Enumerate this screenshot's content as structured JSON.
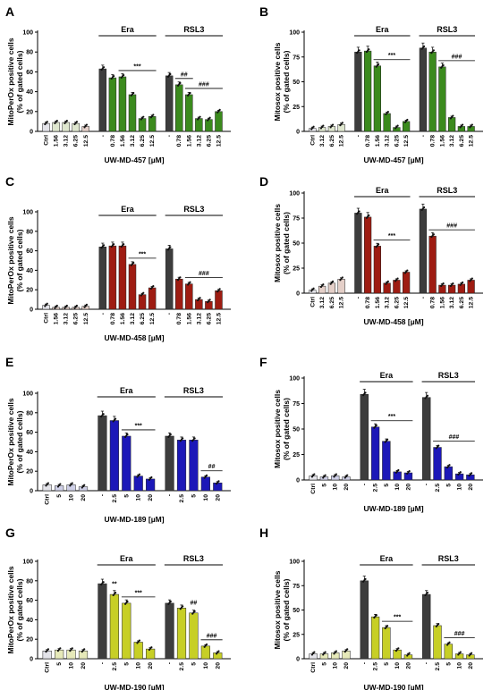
{
  "colors": {
    "control": "#e4e4ea",
    "untreated": "#3d3d3d",
    "green": "#3b8a1d",
    "green_light": "#dfe7cf",
    "red": "#9e1c12",
    "red_light": "#e4cfc8",
    "blue": "#1c18b8",
    "blue_light": "#cfd0e8",
    "olive": "#c7cf26",
    "olive_light": "#e6e9b9"
  },
  "chart_data": [
    {
      "type": "bar",
      "panel": "A",
      "ylabel": "MitoPerOx positive cells\n(% of gated cells)",
      "xlabel": "UW-MD-457 [µM]",
      "ylim": [
        0,
        100
      ],
      "yticks": [
        0,
        20,
        40,
        60,
        80,
        100
      ],
      "groups": [
        {
          "name": "",
          "categories": [
            "Ctrl",
            "1.56",
            "3.12",
            "6.25",
            "12.5"
          ],
          "values": [
            8,
            9,
            9,
            8,
            5
          ],
          "colors": [
            "control",
            "green_light",
            "green_light",
            "green_light",
            "red_light"
          ],
          "sig": []
        },
        {
          "name": "Era",
          "categories": [
            "-",
            "0.78",
            "1.56",
            "3.12",
            "6.25",
            "12.5"
          ],
          "values": [
            63,
            54,
            55,
            37,
            13,
            15
          ],
          "colors": [
            "untreated",
            "green",
            "green",
            "green",
            "green",
            "green"
          ],
          "sig": [
            {
              "text": "***",
              "from": 2,
              "to": 5
            }
          ]
        },
        {
          "name": "RSL3",
          "categories": [
            "-",
            "0.78",
            "1.56",
            "3.12",
            "6.25",
            "12.5"
          ],
          "values": [
            56,
            47,
            37,
            13,
            12,
            20
          ],
          "colors": [
            "untreated",
            "green",
            "green",
            "green",
            "green",
            "green"
          ],
          "sig": [
            {
              "text": "##",
              "from": 1,
              "to": 2
            },
            {
              "text": "###",
              "from": 2,
              "to": 5
            }
          ]
        }
      ]
    },
    {
      "type": "bar",
      "panel": "B",
      "ylabel": "Mitosox positive cells\n(% of gated cells)",
      "xlabel": "UW-MD-457 [µM]",
      "ylim": [
        0,
        100
      ],
      "yticks": [
        0,
        25,
        50,
        75,
        100
      ],
      "groups": [
        {
          "name": "",
          "categories": [
            "Ctrl",
            "3.12",
            "6.25",
            "12.5"
          ],
          "values": [
            3,
            4,
            5,
            7
          ],
          "colors": [
            "control",
            "green_light",
            "green_light",
            "green_light"
          ],
          "sig": []
        },
        {
          "name": "Era",
          "categories": [
            "-",
            "0.78",
            "1.56",
            "3.12",
            "6.25",
            "12.5"
          ],
          "values": [
            80,
            81,
            66,
            18,
            4,
            10
          ],
          "colors": [
            "untreated",
            "green",
            "green",
            "green",
            "green",
            "green"
          ],
          "sig": [
            {
              "text": "***",
              "from": 2,
              "to": 5
            }
          ]
        },
        {
          "name": "RSL3",
          "categories": [
            "-",
            "0.78",
            "1.56",
            "3.12",
            "6.25",
            "12.5"
          ],
          "values": [
            84,
            80,
            65,
            14,
            5,
            5
          ],
          "colors": [
            "untreated",
            "green",
            "green",
            "green",
            "green",
            "green"
          ],
          "sig": [
            {
              "text": "###",
              "from": 2,
              "to": 5
            }
          ]
        }
      ]
    },
    {
      "type": "bar",
      "panel": "C",
      "ylabel": "MitoPerOx positive cells\n(% of gated cells)",
      "xlabel": "UW-MD-458 [µM]",
      "ylim": [
        0,
        100
      ],
      "yticks": [
        0,
        20,
        40,
        60,
        80,
        100
      ],
      "groups": [
        {
          "name": "",
          "categories": [
            "Ctrl",
            "1.56",
            "3.12",
            "6.25",
            "12.5"
          ],
          "values": [
            4,
            2,
            2,
            2,
            3
          ],
          "colors": [
            "control",
            "red_light",
            "red_light",
            "red_light",
            "red_light"
          ],
          "sig": []
        },
        {
          "name": "Era",
          "categories": [
            "-",
            "0.78",
            "1.56",
            "3.12",
            "6.25",
            "12.5"
          ],
          "values": [
            64,
            65,
            65,
            46,
            15,
            22
          ],
          "colors": [
            "untreated",
            "red",
            "red",
            "red",
            "red",
            "red"
          ],
          "sig": [
            {
              "text": "***",
              "from": 3,
              "to": 5
            }
          ]
        },
        {
          "name": "RSL3",
          "categories": [
            "-",
            "0.78",
            "1.56",
            "3.12",
            "6.25",
            "12.5"
          ],
          "values": [
            62,
            31,
            26,
            10,
            8,
            19
          ],
          "colors": [
            "untreated",
            "red",
            "red",
            "red",
            "red",
            "red"
          ],
          "sig": [
            {
              "text": "###",
              "from": 2,
              "to": 5
            }
          ]
        }
      ]
    },
    {
      "type": "bar",
      "panel": "D",
      "ylabel": "Mitosox positive cells\n(% of gated cells)",
      "xlabel": "UW-MD-458 [µM]",
      "ylim": [
        0,
        100
      ],
      "yticks": [
        0,
        25,
        50,
        75,
        100
      ],
      "groups": [
        {
          "name": "",
          "categories": [
            "Ctrl",
            "3.12",
            "6.25",
            "12.5"
          ],
          "values": [
            3,
            7,
            10,
            14
          ],
          "colors": [
            "control",
            "red_light",
            "red_light",
            "red_light"
          ],
          "sig": []
        },
        {
          "name": "Era",
          "categories": [
            "-",
            "0.78",
            "1.56",
            "3.12",
            "6.25",
            "12.5"
          ],
          "values": [
            80,
            76,
            47,
            10,
            13,
            21
          ],
          "colors": [
            "untreated",
            "red",
            "red",
            "red",
            "red",
            "red"
          ],
          "sig": [
            {
              "text": "***",
              "from": 2,
              "to": 5
            }
          ]
        },
        {
          "name": "RSL3",
          "categories": [
            "-",
            "0.78",
            "1.56",
            "3.12",
            "6.25",
            "12.5"
          ],
          "values": [
            84,
            57,
            8,
            8,
            9,
            13
          ],
          "colors": [
            "untreated",
            "red",
            "red",
            "red",
            "red",
            "red"
          ],
          "sig": [
            {
              "text": "###",
              "from": 1,
              "to": 5
            }
          ]
        }
      ]
    },
    {
      "type": "bar",
      "panel": "E",
      "ylabel": "MitoPerOx positive cells\n(% of gated cells)",
      "xlabel": "UW-MD-189 [µM]",
      "ylim": [
        0,
        100
      ],
      "yticks": [
        0,
        20,
        40,
        60,
        80,
        100
      ],
      "groups": [
        {
          "name": "",
          "categories": [
            "Ctrl",
            "5",
            "10",
            "20"
          ],
          "values": [
            6,
            5,
            6,
            4
          ],
          "colors": [
            "control",
            "blue_light",
            "blue_light",
            "blue_light"
          ],
          "sig": []
        },
        {
          "name": "Era",
          "categories": [
            "-",
            "2.5",
            "5",
            "10",
            "20"
          ],
          "values": [
            77,
            72,
            56,
            15,
            12
          ],
          "colors": [
            "untreated",
            "blue",
            "blue",
            "blue",
            "blue"
          ],
          "sig": [
            {
              "text": "***",
              "from": 2,
              "to": 4
            }
          ]
        },
        {
          "name": "RSL3",
          "categories": [
            "-",
            "2.5",
            "5",
            "10",
            "20"
          ],
          "values": [
            56,
            52,
            52,
            14,
            8
          ],
          "colors": [
            "untreated",
            "blue",
            "blue",
            "blue",
            "blue"
          ],
          "sig": [
            {
              "text": "##",
              "from": 3,
              "to": 4
            }
          ]
        }
      ]
    },
    {
      "type": "bar",
      "panel": "F",
      "ylabel": "Mitosox positive cells\n(% of gated cells)",
      "xlabel": "UW-MD-189 [µM]",
      "ylim": [
        0,
        100
      ],
      "yticks": [
        0,
        25,
        50,
        75,
        100
      ],
      "groups": [
        {
          "name": "",
          "categories": [
            "Ctrl",
            "5",
            "10",
            "20"
          ],
          "values": [
            4,
            3,
            4,
            3
          ],
          "colors": [
            "control",
            "blue_light",
            "blue_light",
            "blue_light"
          ],
          "sig": []
        },
        {
          "name": "Era",
          "categories": [
            "-",
            "2.5",
            "5",
            "10",
            "20"
          ],
          "values": [
            84,
            52,
            38,
            8,
            7
          ],
          "colors": [
            "untreated",
            "blue",
            "blue",
            "blue",
            "blue"
          ],
          "sig": [
            {
              "text": "***",
              "from": 1,
              "to": 4
            }
          ]
        },
        {
          "name": "RSL3",
          "categories": [
            "-",
            "2.5",
            "5",
            "10",
            "20"
          ],
          "values": [
            81,
            32,
            13,
            6,
            5
          ],
          "colors": [
            "untreated",
            "blue",
            "blue",
            "blue",
            "blue"
          ],
          "sig": [
            {
              "text": "###",
              "from": 1,
              "to": 4
            }
          ]
        }
      ]
    },
    {
      "type": "bar",
      "panel": "G",
      "ylabel": "MitoPerOx positive cells\n(% of gated cells)",
      "xlabel": "UW-MD-190 [µM]",
      "ylim": [
        0,
        100
      ],
      "yticks": [
        0,
        20,
        40,
        60,
        80,
        100
      ],
      "groups": [
        {
          "name": "",
          "categories": [
            "Ctrl",
            "5",
            "10",
            "20"
          ],
          "values": [
            8,
            9,
            9,
            8
          ],
          "colors": [
            "control",
            "olive_light",
            "olive_light",
            "olive_light"
          ],
          "sig": []
        },
        {
          "name": "Era",
          "categories": [
            "-",
            "2.5",
            "5",
            "10",
            "20"
          ],
          "values": [
            77,
            66,
            57,
            17,
            10
          ],
          "colors": [
            "untreated",
            "olive",
            "olive",
            "olive",
            "olive"
          ],
          "sig": [
            {
              "text": "**",
              "from": 1,
              "to": 1
            },
            {
              "text": "***",
              "from": 2,
              "to": 4
            }
          ]
        },
        {
          "name": "RSL3",
          "categories": [
            "-",
            "2.5",
            "5",
            "10",
            "20"
          ],
          "values": [
            57,
            52,
            47,
            13,
            6
          ],
          "colors": [
            "untreated",
            "olive",
            "olive",
            "olive",
            "olive"
          ],
          "sig": [
            {
              "text": "##",
              "from": 2,
              "to": 2
            },
            {
              "text": "###",
              "from": 3,
              "to": 4
            }
          ]
        }
      ]
    },
    {
      "type": "bar",
      "panel": "H",
      "ylabel": "Mitosox positive cells\n(% of gated cells)",
      "xlabel": "UW-MD-190 [µM]",
      "ylim": [
        0,
        100
      ],
      "yticks": [
        0,
        25,
        50,
        75,
        100
      ],
      "groups": [
        {
          "name": "",
          "categories": [
            "Ctrl",
            "5",
            "10",
            "20"
          ],
          "values": [
            5,
            5,
            6,
            8
          ],
          "colors": [
            "control",
            "olive_light",
            "olive_light",
            "olive_light"
          ],
          "sig": []
        },
        {
          "name": "Era",
          "categories": [
            "-",
            "2.5",
            "5",
            "10",
            "20"
          ],
          "values": [
            80,
            43,
            32,
            9,
            4
          ],
          "colors": [
            "untreated",
            "olive",
            "olive",
            "olive",
            "olive"
          ],
          "sig": [
            {
              "text": "***",
              "from": 2,
              "to": 4
            }
          ]
        },
        {
          "name": "RSL3",
          "categories": [
            "-",
            "2.5",
            "5",
            "10",
            "20"
          ],
          "values": [
            66,
            34,
            15,
            5,
            4
          ],
          "colors": [
            "untreated",
            "olive",
            "olive",
            "olive",
            "olive"
          ],
          "sig": [
            {
              "text": "###",
              "from": 2,
              "to": 4
            }
          ]
        }
      ]
    }
  ]
}
